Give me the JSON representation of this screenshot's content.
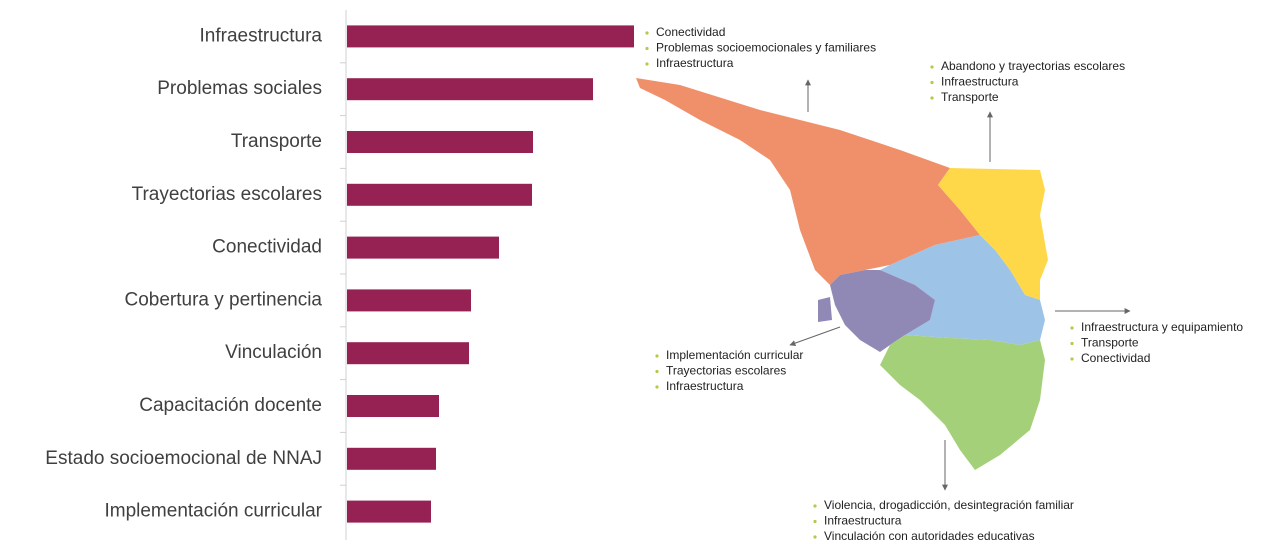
{
  "chart_data": {
    "type": "bar",
    "orientation": "horizontal",
    "categories": [
      "Infraestructura",
      "Problemas sociales",
      "Transporte",
      "Trayectorias escolares",
      "Conectividad",
      "Cobertura y pertinencia",
      "Vinculación",
      "Capacitación docente",
      "Estado socioemocional de NNAJ",
      "Implementación curricular"
    ],
    "values": [
      287,
      246,
      186,
      185,
      152,
      124,
      122,
      92,
      89,
      84
    ],
    "color": "#962254"
  },
  "map": {
    "callouts": [
      {
        "items": [
          "Conectividad",
          "Problemas socioemocionales y familiares",
          "Infraestructura"
        ]
      },
      {
        "items": [
          "Abandono y trayectorias escolares",
          "Infraestructura",
          "Transporte"
        ]
      },
      {
        "items": [
          "Infraestructura y equipamiento",
          "Transporte",
          "Conectividad"
        ]
      },
      {
        "items": [
          "Implementación curricular",
          "Trayectorias escolares",
          "Infraestructura"
        ]
      },
      {
        "items": [
          "Violencia, drogadicción, desintegración familiar",
          "Infraestructura",
          "Vinculación con autoridades educativas"
        ]
      }
    ]
  }
}
